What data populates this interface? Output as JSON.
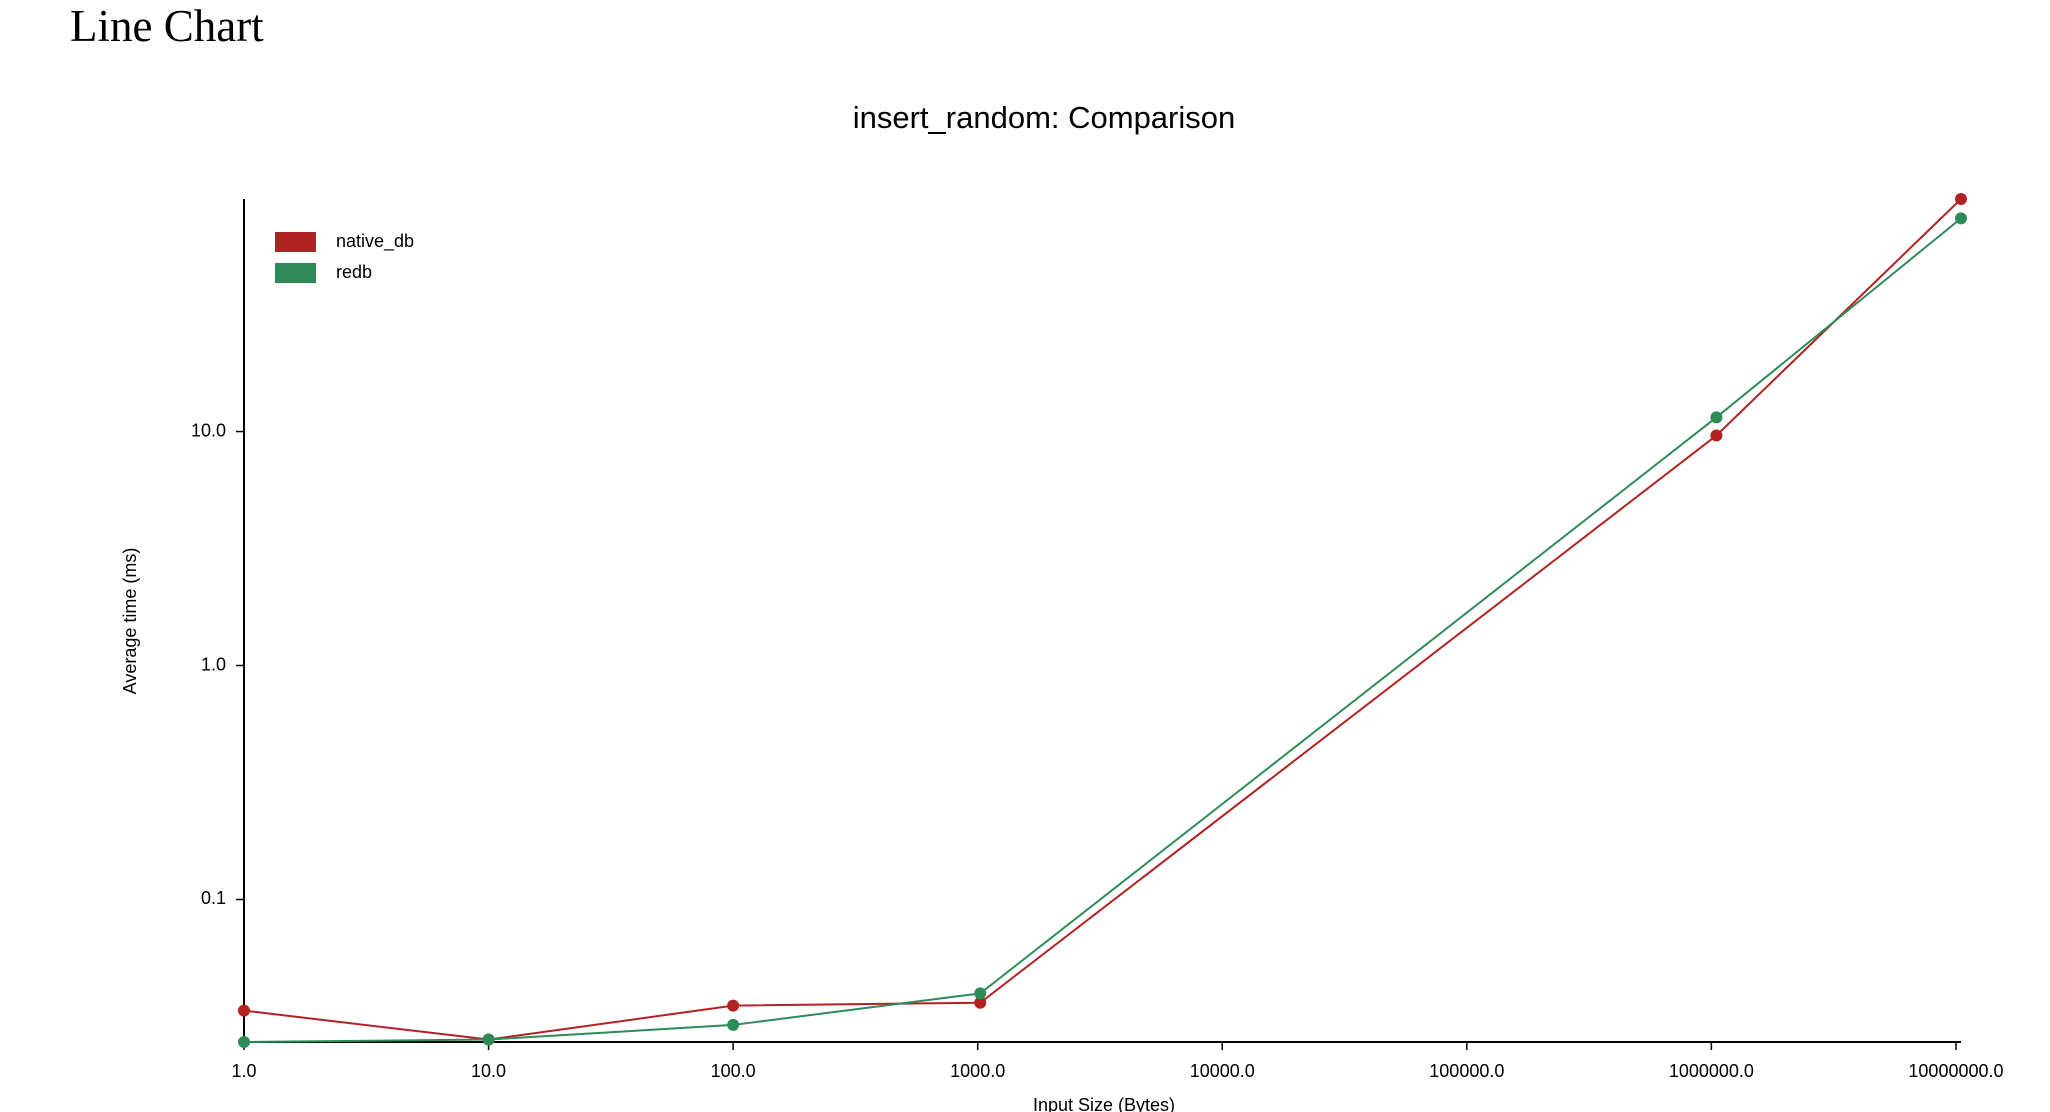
{
  "page_title": "Line Chart",
  "chart_data": {
    "type": "line",
    "title": "insert_random: Comparison",
    "x_label": "Input Size (Bytes)",
    "y_label": "Average time (ms)",
    "x": [
      1,
      10,
      100,
      1024,
      1048576,
      10485760
    ],
    "series": [
      {
        "name": "native_db",
        "color": "#b22222",
        "values": [
          0.0335,
          0.0252,
          0.0352,
          0.0362,
          9.62,
          98.6
        ]
      },
      {
        "name": "redb",
        "color": "#2e8b57",
        "values": [
          0.0246,
          0.0252,
          0.0291,
          0.0397,
          11.5,
          81.5
        ]
      }
    ],
    "xlim": [
      1,
      10485760
    ],
    "ylim": [
      0.0246,
      98.6
    ],
    "xscale": "log",
    "yscale": "log",
    "xticks": [
      {
        "value": 1,
        "label": "1.0"
      },
      {
        "value": 10,
        "label": "10.0"
      },
      {
        "value": 100,
        "label": "100.0"
      },
      {
        "value": 1000,
        "label": "1000.0"
      },
      {
        "value": 10000,
        "label": "10000.0"
      },
      {
        "value": 100000,
        "label": "100000.0"
      },
      {
        "value": 1000000,
        "label": "1000000.0"
      },
      {
        "value": 10000000,
        "label": "10000000.0"
      }
    ],
    "yticks": [
      0.1,
      {
        "value": 1,
        "label": "1.0"
      },
      {
        "value": 10,
        "label": "10.0"
      }
    ],
    "legend": "top-left",
    "grid": false
  }
}
